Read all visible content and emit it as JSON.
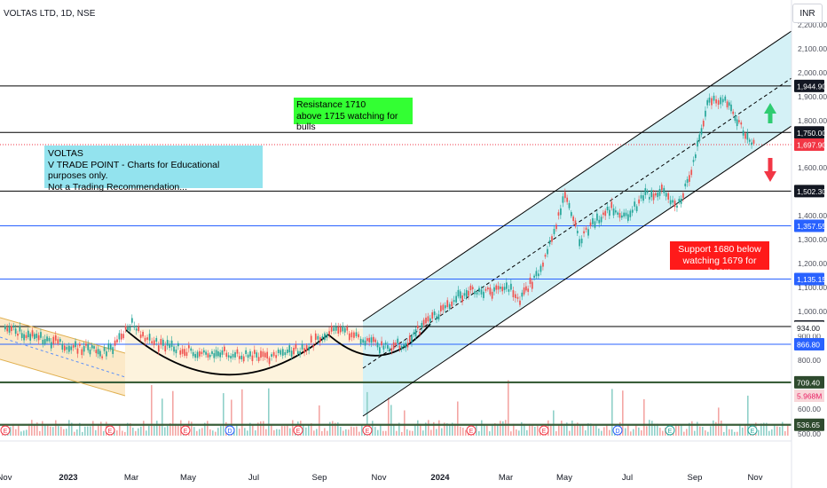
{
  "header": {
    "title": "VOLTAS LTD, 1D, NSE",
    "currency": "INR"
  },
  "notes": {
    "resistance": "Resistance 1710\nabove 1715 watching for bulls",
    "disclaimer": "VOLTAS\nV TRADE POINT - Charts for Educational purposes only.\nNot a Trading Recommendation...",
    "support": "Support 1680 below\nwatching 1679 for bears"
  },
  "colors": {
    "up": "#26a69a",
    "down": "#ef5350",
    "channel_fill": "#cdeff5",
    "consolidation_fill": "#fdf3dd",
    "downchannel_fill": "#fce9c8",
    "blue_line": "#2962ff",
    "green_line": "#3a5f3a",
    "black_line": "#000000",
    "label_blue": "#2962ff",
    "label_black": "#131722",
    "label_green": "#2e4a2e",
    "label_red": "#f23645",
    "label_purple_red": "#e91e63"
  },
  "chart_data": {
    "type": "line",
    "title": "VOLTAS LTD, 1D, NSE",
    "xlabel": "",
    "ylabel": "",
    "ylim": [
      470,
      2240
    ],
    "x_ticks": [
      "Nov",
      "2023",
      "Mar",
      "May",
      "Jul",
      "Sep",
      "Nov",
      "2024",
      "Mar",
      "May",
      "Jul",
      "Sep",
      "Nov"
    ],
    "y_ticks": [
      500,
      600,
      800,
      900,
      1000,
      1100,
      1200,
      1300,
      1400,
      1600,
      1800,
      1900,
      2000,
      2100,
      2200
    ],
    "y_tick_labels": [
      "500.00",
      "600.00",
      "800.00",
      "900.00",
      "1,000.00",
      "1,100.00",
      "1,200.00",
      "1,300.00",
      "1,400.00",
      "1,600.00",
      "1,800.00",
      "1,900.00",
      "2,000.00",
      "2,100.00",
      "2,200.00"
    ],
    "x_values": [
      "2022-11-01",
      "2022-11-15",
      "2022-12-01",
      "2022-12-15",
      "2023-01-01",
      "2023-01-15",
      "2023-02-01",
      "2023-02-15",
      "2023-03-01",
      "2023-03-15",
      "2023-04-01",
      "2023-04-15",
      "2023-05-01",
      "2023-05-15",
      "2023-06-01",
      "2023-06-15",
      "2023-07-01",
      "2023-07-15",
      "2023-08-01",
      "2023-08-15",
      "2023-09-01",
      "2023-09-15",
      "2023-10-01",
      "2023-10-15",
      "2023-11-01",
      "2023-11-15",
      "2023-12-01",
      "2023-12-15",
      "2024-01-01",
      "2024-01-15",
      "2024-02-01",
      "2024-02-15",
      "2024-03-01",
      "2024-03-15",
      "2024-04-01",
      "2024-04-15",
      "2024-05-01",
      "2024-05-15",
      "2024-06-01",
      "2024-06-15",
      "2024-07-01",
      "2024-07-15",
      "2024-08-01",
      "2024-08-15",
      "2024-09-01",
      "2024-09-15",
      "2024-10-01",
      "2024-10-15",
      "2024-11-01"
    ],
    "series": [
      {
        "values": [
          940,
          915,
          895,
          880,
          860,
          850,
          830,
          870,
          950,
          900,
          860,
          850,
          840,
          830,
          835,
          825,
          820,
          815,
          830,
          850,
          890,
          940,
          910,
          890,
          860,
          860,
          880,
          950,
          1000,
          1060,
          1090,
          1080,
          1110,
          1050,
          1150,
          1270,
          1480,
          1300,
          1380,
          1430,
          1400,
          1480,
          1500,
          1420,
          1650,
          1900,
          1880,
          1780,
          1697.9
        ]
      }
    ],
    "price_levels": [
      {
        "value": 1944.9,
        "label": "1,944.90",
        "style": "black"
      },
      {
        "value": 1750.0,
        "label": "1,750.00",
        "style": "black"
      },
      {
        "value": 1697.9,
        "label": "1,697.90",
        "style": "last"
      },
      {
        "value": 1502.3,
        "label": "1,502.30",
        "style": "black"
      },
      {
        "value": 1357.55,
        "label": "1,357.55",
        "style": "blue"
      },
      {
        "value": 1135.15,
        "label": "1,135.15",
        "style": "blue"
      },
      {
        "value": 939.2,
        "label": "939.20",
        "style": "black"
      },
      {
        "value": 934.0,
        "label": "934.00",
        "style": "plain"
      },
      {
        "value": 866.8,
        "label": "866.80",
        "style": "blue"
      },
      {
        "value": 709.4,
        "label": "709.40",
        "style": "green"
      },
      {
        "value": 536.65,
        "label": "536.65",
        "style": "green"
      }
    ],
    "volume_label": "5.968M",
    "grid": false
  }
}
